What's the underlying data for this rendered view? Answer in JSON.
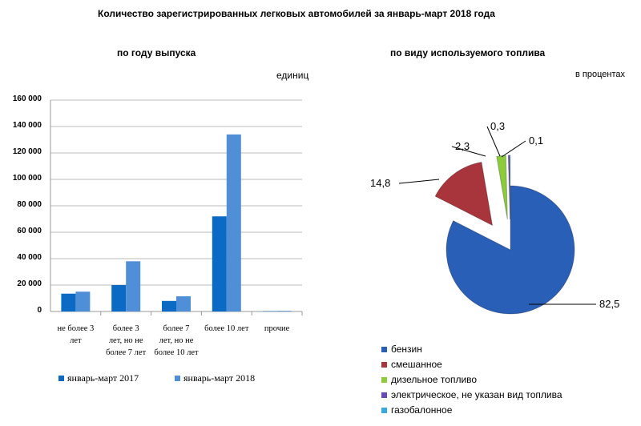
{
  "title": "Количество зарегистрированных  легковых автомобилей  за январь-март  2018 года",
  "chart_data": [
    {
      "type": "bar",
      "title": "по году выпуска",
      "unit_label": "единиц",
      "categories": [
        [
          "не более 3",
          "лет"
        ],
        [
          "более 3",
          "лет, но не",
          "более 7 лет"
        ],
        [
          "более 7",
          "лет, но не",
          "более 10 лет"
        ],
        [
          "более 10 лет"
        ],
        [
          "прочие"
        ]
      ],
      "series": [
        {
          "name": "январь-март 2017",
          "color": "#0a6ac4",
          "values": [
            13500,
            20000,
            8000,
            72000,
            300
          ]
        },
        {
          "name": "январь-март 2018",
          "color": "#4f8fd8",
          "values": [
            15000,
            38000,
            11500,
            134000,
            500
          ]
        }
      ],
      "ylim": [
        0,
        160000
      ],
      "yticks": [
        "0",
        "20 000",
        "40 000",
        "60 000",
        "80 000",
        "100 000",
        "120 000",
        "140 000",
        "160 000"
      ],
      "grid": true,
      "legend": "bottom"
    },
    {
      "type": "pie",
      "title": "по виду используемого  топлива",
      "unit_label": "в процентах",
      "labels": [
        "бензин",
        "смешанное",
        "дизельное топливо",
        "электрическое, не указан вид топлива",
        "газобалонное"
      ],
      "values": [
        82.5,
        14.8,
        2.3,
        0.3,
        0.1
      ],
      "value_labels": [
        "82,5",
        "14,8",
        "2,3",
        "0,3",
        "0,1"
      ],
      "colors": [
        "#2a5fb8",
        "#a8343c",
        "#8ccc3c",
        "#6a4ab8",
        "#3aa8e0"
      ],
      "legend": "bottom"
    }
  ]
}
